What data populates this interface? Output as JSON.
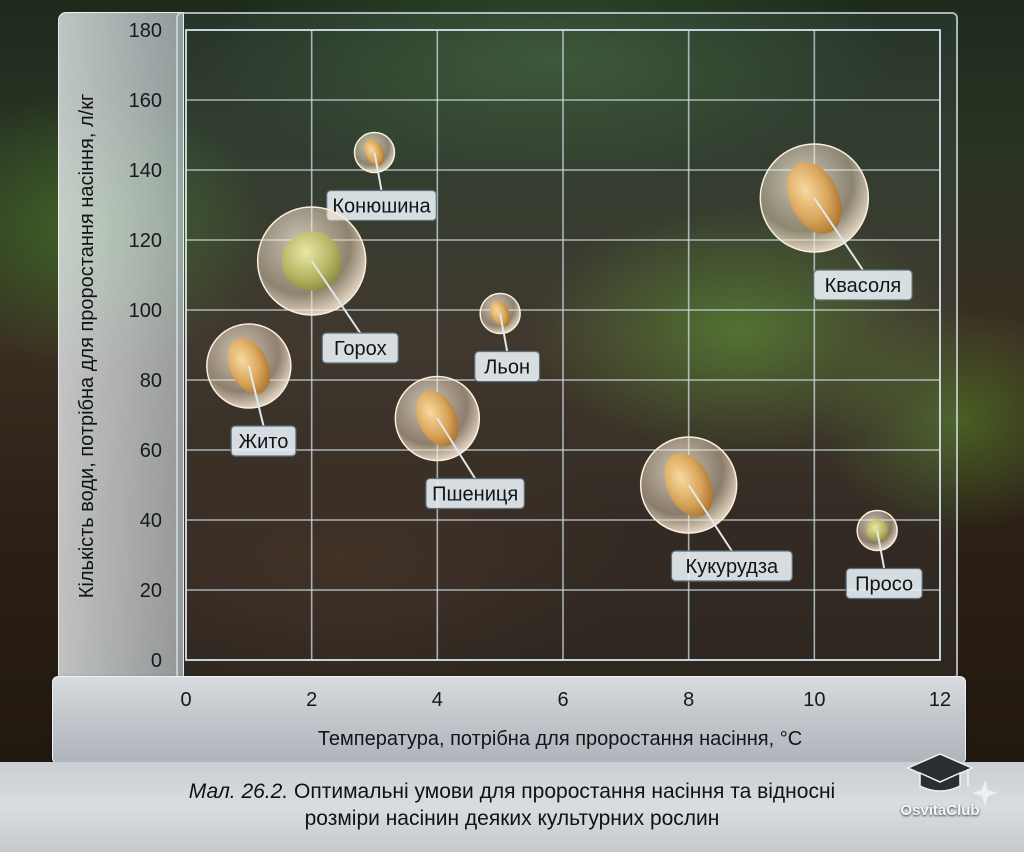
{
  "chart_data": {
    "type": "scatter",
    "title": "",
    "xlabel": "Температура, потрібна для проростання насіння, °C",
    "ylabel": "Кількість води, потрібна для проростання насіння, л/кг",
    "xlim": [
      0,
      12
    ],
    "ylim": [
      0,
      180
    ],
    "x_ticks": [
      0,
      2,
      4,
      6,
      8,
      10,
      12
    ],
    "y_ticks": [
      0,
      20,
      40,
      60,
      80,
      100,
      120,
      140,
      160,
      180
    ],
    "grid": true,
    "points": [
      {
        "label": "Конюшина",
        "x": 3,
        "y": 145,
        "size": "small",
        "label_side": "below"
      },
      {
        "label": "Квасоля",
        "x": 10,
        "y": 132,
        "size": "large",
        "label_side": "below-right"
      },
      {
        "label": "Горох",
        "x": 2,
        "y": 114,
        "size": "large",
        "label_side": "below-right"
      },
      {
        "label": "Льон",
        "x": 5,
        "y": 99,
        "size": "small",
        "label_side": "below"
      },
      {
        "label": "Жито",
        "x": 1,
        "y": 84,
        "size": "medium",
        "label_side": "below"
      },
      {
        "label": "Пшениця",
        "x": 4,
        "y": 69,
        "size": "medium",
        "label_side": "below-right"
      },
      {
        "label": "Кукурудза",
        "x": 8,
        "y": 50,
        "size": "medium-large",
        "label_side": "below-right"
      },
      {
        "label": "Просо",
        "x": 11,
        "y": 37,
        "size": "small",
        "label_side": "below"
      }
    ]
  },
  "caption": {
    "figure_ref": "Мал. 26.2.",
    "line1": "Оптимальні умови для проростання насіння та відносні",
    "line2": "розміри насінин деяких культурних рослин"
  },
  "logo": {
    "text": "OsvitaClub",
    "icon": "graduation-cap-icon"
  },
  "colors": {
    "grid": "#cfdde5",
    "label_bg": "#e8f0f5",
    "label_border": "#5b6f7b",
    "bubble": "#f3e6d4",
    "seed": "#d9a55a"
  }
}
